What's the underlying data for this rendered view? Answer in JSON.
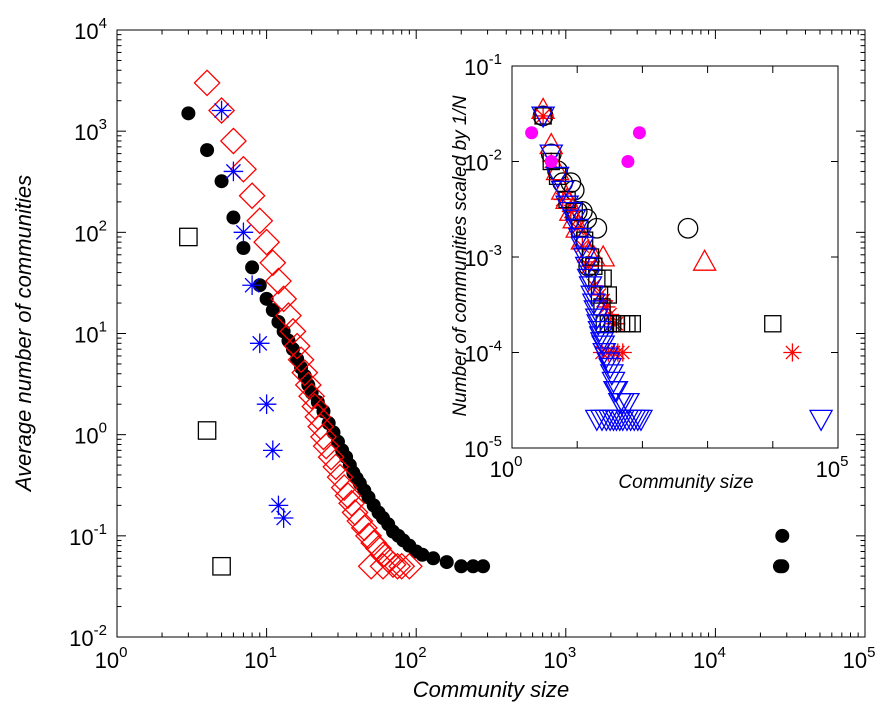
{
  "chart_data": [
    {
      "type": "scatter",
      "title": "",
      "xlabel": "Community size",
      "ylabel": "Average number of communities",
      "xscale": "log",
      "yscale": "log",
      "xlim": [
        1,
        100000
      ],
      "ylim": [
        0.01,
        10000
      ],
      "x_ticks": [
        {
          "base": "10",
          "exp": "0"
        },
        {
          "base": "10",
          "exp": "1"
        },
        {
          "base": "10",
          "exp": "2"
        },
        {
          "base": "10",
          "exp": "3"
        },
        {
          "base": "10",
          "exp": "4"
        },
        {
          "base": "10",
          "exp": "5"
        }
      ],
      "y_ticks": [
        {
          "base": "10",
          "exp": "-2"
        },
        {
          "base": "10",
          "exp": "-1"
        },
        {
          "base": "10",
          "exp": "0"
        },
        {
          "base": "10",
          "exp": "1"
        },
        {
          "base": "10",
          "exp": "2"
        },
        {
          "base": "10",
          "exp": "3"
        },
        {
          "base": "10",
          "exp": "4"
        }
      ],
      "grid": false,
      "series": [
        {
          "marker": "filled-circle",
          "color": "#000000",
          "points": [
            [
              3,
              1500
            ],
            [
              4,
              650
            ],
            [
              5,
              320
            ],
            [
              6,
              140
            ],
            [
              7,
              70
            ],
            [
              8,
              45
            ],
            [
              9,
              30
            ],
            [
              10,
              22
            ],
            [
              11,
              17
            ],
            [
              12,
              13
            ],
            [
              13,
              10.5
            ],
            [
              14,
              8.5
            ],
            [
              15,
              7
            ],
            [
              16,
              5.6
            ],
            [
              17,
              4.6
            ],
            [
              18,
              3.8
            ],
            [
              19,
              3.1
            ],
            [
              20,
              2.6
            ],
            [
              22,
              2.1
            ],
            [
              24,
              1.7
            ],
            [
              26,
              1.3
            ],
            [
              28,
              1.05
            ],
            [
              30,
              0.85
            ],
            [
              32,
              0.7
            ],
            [
              34,
              0.6
            ],
            [
              36,
              0.5
            ],
            [
              38,
              0.42
            ],
            [
              40,
              0.37
            ],
            [
              42,
              0.33
            ],
            [
              45,
              0.28
            ],
            [
              48,
              0.24
            ],
            [
              52,
              0.2
            ],
            [
              56,
              0.17
            ],
            [
              60,
              0.15
            ],
            [
              65,
              0.13
            ],
            [
              70,
              0.11
            ],
            [
              76,
              0.1
            ],
            [
              82,
              0.09
            ],
            [
              90,
              0.08
            ],
            [
              100,
              0.07
            ],
            [
              110,
              0.065
            ],
            [
              130,
              0.06
            ],
            [
              160,
              0.055
            ],
            [
              200,
              0.05
            ],
            [
              240,
              0.05
            ],
            [
              280,
              0.05
            ],
            [
              28000,
              0.1
            ],
            [
              27000,
              0.05
            ],
            [
              28000,
              0.05
            ]
          ]
        },
        {
          "marker": "open-diamond",
          "color": "#ff0000",
          "points": [
            [
              4,
              3000
            ],
            [
              5,
              1600
            ],
            [
              6,
              800
            ],
            [
              7,
              420
            ],
            [
              8,
              230
            ],
            [
              9,
              130
            ],
            [
              10,
              80
            ],
            [
              11,
              50
            ],
            [
              12,
              33
            ],
            [
              13,
              22
            ],
            [
              14,
              15
            ],
            [
              15,
              10.5
            ],
            [
              16,
              7.5
            ],
            [
              17,
              5.5
            ],
            [
              18,
              4.1
            ],
            [
              19,
              3.1
            ],
            [
              20,
              2.4
            ],
            [
              21,
              1.9
            ],
            [
              22,
              1.5
            ],
            [
              23,
              1.2
            ],
            [
              24,
              0.95
            ],
            [
              25,
              0.77
            ],
            [
              27,
              0.6
            ],
            [
              29,
              0.48
            ],
            [
              31,
              0.38
            ],
            [
              33,
              0.3
            ],
            [
              35,
              0.25
            ],
            [
              37,
              0.21
            ],
            [
              39,
              0.17
            ],
            [
              42,
              0.14
            ],
            [
              45,
              0.12
            ],
            [
              48,
              0.1
            ],
            [
              52,
              0.085
            ],
            [
              56,
              0.075
            ],
            [
              60,
              0.065
            ],
            [
              65,
              0.058
            ],
            [
              70,
              0.052
            ],
            [
              75,
              0.05
            ],
            [
              50,
              0.05
            ],
            [
              60,
              0.05
            ],
            [
              80,
              0.05
            ],
            [
              90,
              0.05
            ]
          ]
        },
        {
          "marker": "asterisk",
          "color": "#0000ff",
          "points": [
            [
              5,
              1600
            ],
            [
              6,
              400
            ],
            [
              7,
              100
            ],
            [
              8,
              30
            ],
            [
              9,
              8
            ],
            [
              10,
              2
            ],
            [
              11,
              0.7
            ],
            [
              12,
              0.2
            ],
            [
              13,
              0.15
            ]
          ]
        },
        {
          "marker": "open-square",
          "color": "#000000",
          "points": [
            [
              3,
              90
            ],
            [
              4,
              1.1
            ],
            [
              5,
              0.05
            ]
          ]
        }
      ]
    },
    {
      "type": "scatter",
      "title": "",
      "xlabel": "Community size",
      "ylabel": "Number of communities scaled by 1/N",
      "xscale": "log",
      "yscale": "log",
      "xlim": [
        1,
        100000
      ],
      "ylim": [
        1e-05,
        0.1
      ],
      "x_ticks": [
        {
          "base": "10",
          "exp": "0"
        },
        {
          "base": "10",
          "exp": "5"
        }
      ],
      "y_ticks": [
        {
          "base": "10",
          "exp": "-5"
        },
        {
          "base": "10",
          "exp": "-4"
        },
        {
          "base": "10",
          "exp": "-3"
        },
        {
          "base": "10",
          "exp": "-2"
        },
        {
          "base": "10",
          "exp": "-1"
        }
      ],
      "grid": false,
      "series": [
        {
          "marker": "open-circle",
          "color": "#000000",
          "points": [
            [
              3,
              0.03
            ],
            [
              4,
              0.012
            ],
            [
              5,
              0.008
            ],
            [
              6,
              0.006
            ],
            [
              8,
              0.006
            ],
            [
              9,
              0.005
            ],
            [
              10,
              0.003
            ],
            [
              12,
              0.003
            ],
            [
              14,
              0.0025
            ],
            [
              20,
              0.002
            ],
            [
              500,
              0.002
            ],
            [
              15,
              0.0008
            ]
          ]
        },
        {
          "marker": "open-up-triangle",
          "color": "#ff0000",
          "points": [
            [
              3,
              0.035
            ],
            [
              4,
              0.015
            ],
            [
              5,
              0.008
            ],
            [
              6,
              0.005
            ],
            [
              7,
              0.004
            ],
            [
              8,
              0.003
            ],
            [
              9,
              0.0025
            ],
            [
              10,
              0.002
            ],
            [
              12,
              0.0015
            ],
            [
              15,
              0.0011
            ],
            [
              18,
              0.001
            ],
            [
              25,
              0.001
            ],
            [
              900,
              0.0009
            ]
          ]
        },
        {
          "marker": "asterisk",
          "color": "#ff0000",
          "points": [
            [
              3,
              0.03
            ],
            [
              4,
              0.01
            ],
            [
              6,
              0.004
            ],
            [
              8,
              0.003
            ],
            [
              10,
              0.002
            ],
            [
              12,
              0.0013
            ],
            [
              15,
              0.0008
            ],
            [
              18,
              0.0005
            ],
            [
              22,
              0.0004
            ],
            [
              25,
              0.00035
            ],
            [
              28,
              0.0003
            ],
            [
              32,
              0.00025
            ],
            [
              36,
              0.0002
            ],
            [
              40,
              0.0002
            ],
            [
              24,
              0.0001
            ],
            [
              30,
              0.0001
            ],
            [
              36,
              0.0001
            ],
            [
              42,
              0.0001
            ],
            [
              50,
              0.0001
            ],
            [
              20000,
              0.0001
            ]
          ]
        },
        {
          "marker": "open-square",
          "color": "#000000",
          "points": [
            [
              3,
              0.03
            ],
            [
              4,
              0.01
            ],
            [
              5,
              0.007
            ],
            [
              7,
              0.004
            ],
            [
              9,
              0.003
            ],
            [
              11,
              0.002
            ],
            [
              13,
              0.0015
            ],
            [
              16,
              0.001
            ],
            [
              18,
              0.0008
            ],
            [
              20,
              0.0006
            ],
            [
              25,
              0.0006
            ],
            [
              22,
              0.0004
            ],
            [
              30,
              0.0004
            ],
            [
              24,
              0.0003
            ],
            [
              26,
              0.0002
            ],
            [
              30,
              0.0002
            ],
            [
              35,
              0.0002
            ],
            [
              40,
              0.0002
            ],
            [
              48,
              0.0002
            ],
            [
              58,
              0.0002
            ],
            [
              70,
              0.0002
            ],
            [
              10000,
              0.0002
            ]
          ]
        },
        {
          "marker": "open-down-triangle",
          "color": "#0000ff",
          "points": [
            [
              3,
              0.03
            ],
            [
              4,
              0.012
            ],
            [
              5,
              0.007
            ],
            [
              6,
              0.005
            ],
            [
              7,
              0.0035
            ],
            [
              8,
              0.003
            ],
            [
              9,
              0.0025
            ],
            [
              10,
              0.002
            ],
            [
              11,
              0.0016
            ],
            [
              12,
              0.0013
            ],
            [
              13,
              0.001
            ],
            [
              14,
              0.0008
            ],
            [
              15,
              0.0006
            ],
            [
              16,
              0.0005
            ],
            [
              17,
              0.0004
            ],
            [
              18,
              0.00033
            ],
            [
              19,
              0.00028
            ],
            [
              20,
              0.00023
            ],
            [
              21,
              0.0002
            ],
            [
              22,
              0.00017
            ],
            [
              23,
              0.00015
            ],
            [
              24,
              0.00013
            ],
            [
              25,
              0.00012
            ],
            [
              26,
              0.0001
            ],
            [
              28,
              9e-05
            ],
            [
              30,
              8e-05
            ],
            [
              32,
              7e-05
            ],
            [
              34,
              6e-05
            ],
            [
              36,
              5e-05
            ],
            [
              38,
              4e-05
            ],
            [
              40,
              4e-05
            ],
            [
              45,
              3e-05
            ],
            [
              50,
              3e-05
            ],
            [
              60,
              3e-05
            ],
            [
              20,
              2e-05
            ],
            [
              24,
              2e-05
            ],
            [
              28,
              2e-05
            ],
            [
              32,
              2e-05
            ],
            [
              36,
              2e-05
            ],
            [
              40,
              2e-05
            ],
            [
              45,
              2e-05
            ],
            [
              50,
              2e-05
            ],
            [
              58,
              2e-05
            ],
            [
              66,
              2e-05
            ],
            [
              75,
              2e-05
            ],
            [
              85,
              2e-05
            ],
            [
              95,
              2e-05
            ],
            [
              55000,
              2e-05
            ]
          ]
        },
        {
          "marker": "filled-circle",
          "color": "#ff00ff",
          "points": [
            [
              2,
              0.02
            ],
            [
              4,
              0.01
            ],
            [
              60,
              0.01
            ],
            [
              90,
              0.02
            ]
          ]
        }
      ]
    }
  ]
}
